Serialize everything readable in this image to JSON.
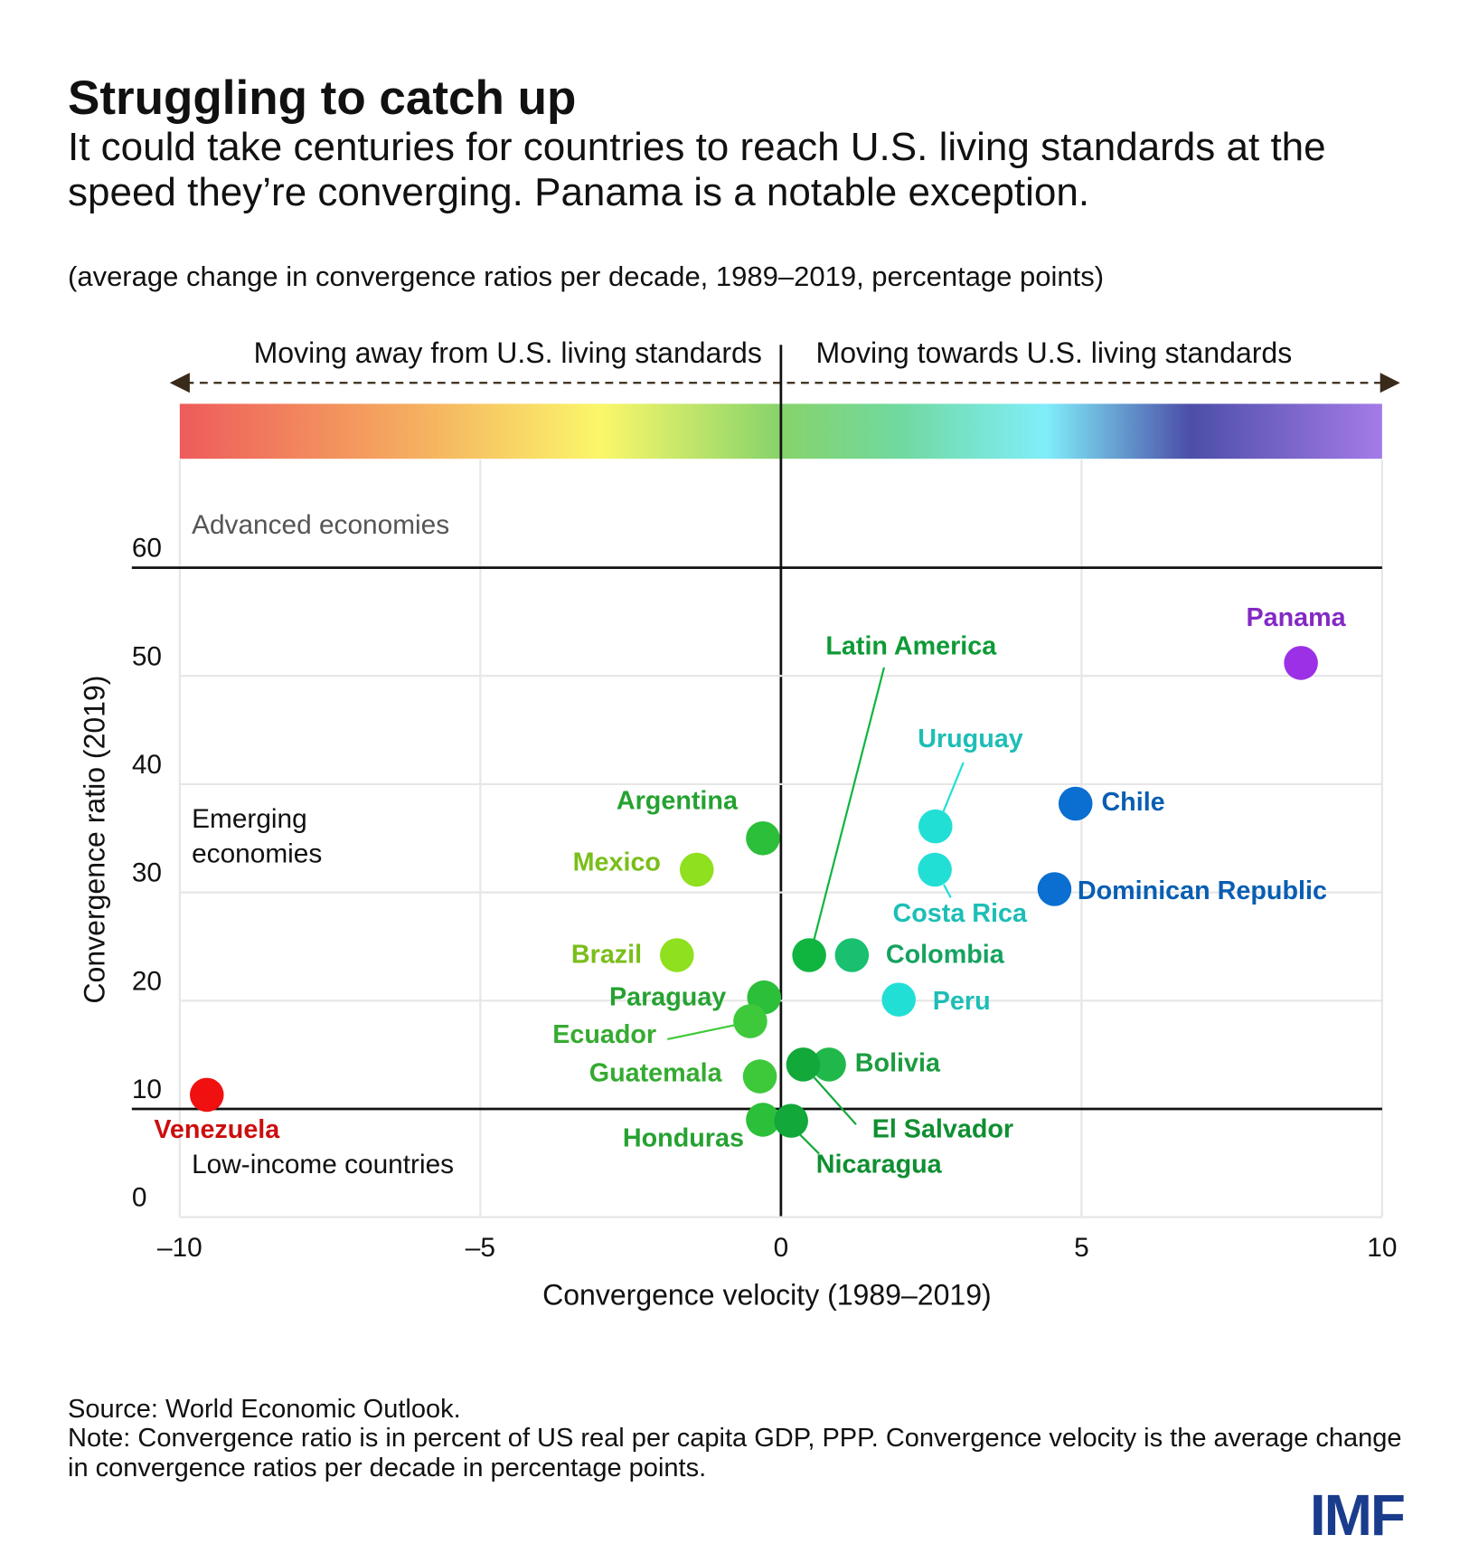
{
  "header": {
    "title": "Struggling to catch up",
    "subtitle": "It could take centuries for countries to reach U.S. living standards at the speed they’re converging. Panama is a notable exception.",
    "units": "(average change in convergence ratios per decade, 1989–2019, percentage points)"
  },
  "chart_data": {
    "type": "scatter",
    "direction_labels": {
      "left": "Moving away from U.S. living standards",
      "right": "Moving towards U.S. living standards"
    },
    "region_labels": {
      "advanced": "Advanced economies",
      "emerging": [
        "Emerging",
        "economies"
      ],
      "low": "Low-income countries"
    },
    "x_label": "Convergence velocity (1989–2019)",
    "y_label": "Convergence ratio (2019)",
    "xlim": [
      -10,
      10
    ],
    "xticks": [
      {
        "value": -10,
        "label": "–10"
      },
      {
        "value": -5,
        "label": "–5"
      },
      0,
      5,
      10
    ],
    "ylim": [
      0,
      60
    ],
    "yticks": [
      0,
      10,
      20,
      30,
      40,
      50,
      60
    ],
    "threshold_yticks": [
      10,
      60
    ],
    "grid": true,
    "points": [
      {
        "label": "Panama",
        "x": 8.65,
        "y": 51.2,
        "color": "#9b30e6"
      },
      {
        "label": "Chile",
        "x": 4.9,
        "y": 38.2,
        "color": "#0a6fd1"
      },
      {
        "label": "Dominican Republic",
        "x": 4.55,
        "y": 30.3,
        "color": "#0a6fd1"
      },
      {
        "label": "Uruguay",
        "x": 2.57,
        "y": 36.1,
        "color": "#22dfd6"
      },
      {
        "label": "Costa Rica",
        "x": 2.56,
        "y": 32.1,
        "color": "#22dfd6"
      },
      {
        "label": "Colombia",
        "x": 1.18,
        "y": 24.2,
        "color": "#18c070"
      },
      {
        "label": "Peru",
        "x": 1.96,
        "y": 20.1,
        "color": "#22dfd6"
      },
      {
        "label": "Latin America",
        "x": 0.47,
        "y": 24.2,
        "color": "#10b540"
      },
      {
        "label": "Argentina",
        "x": -0.3,
        "y": 35,
        "color": "#2cbf3a"
      },
      {
        "label": "Mexico",
        "x": -1.4,
        "y": 32.1,
        "color": "#8fe01e"
      },
      {
        "label": "Brazil",
        "x": -1.73,
        "y": 24.2,
        "color": "#8fe01e"
      },
      {
        "label": "Paraguay",
        "x": -0.28,
        "y": 20.3,
        "color": "#2cbf3a"
      },
      {
        "label": "Ecuador",
        "x": -0.51,
        "y": 18.1,
        "color": "#3ec93a"
      },
      {
        "label": "Guatemala",
        "x": -0.35,
        "y": 13,
        "color": "#3ec93a"
      },
      {
        "label": "Bolivia",
        "x": 0.8,
        "y": 14.1,
        "color": "#20b84a"
      },
      {
        "label": "El Salvador",
        "x": 0.37,
        "y": 14.1,
        "color": "#12a83a"
      },
      {
        "label": "Honduras",
        "x": -0.3,
        "y": 9,
        "color": "#2cbf3a"
      },
      {
        "label": "Nicaragua",
        "x": 0.17,
        "y": 8.9,
        "color": "#12a83a"
      },
      {
        "label": "Venezuela",
        "x": -9.55,
        "y": 11.3,
        "color": "#f01010"
      }
    ]
  },
  "footer": {
    "source": "Source: World Economic Outlook.",
    "note": "Note: Convergence ratio is in percent of US real per capita GDP, PPP. Convergence velocity is the average change in convergence ratios per decade in percentage points.",
    "logo": "IMF"
  }
}
